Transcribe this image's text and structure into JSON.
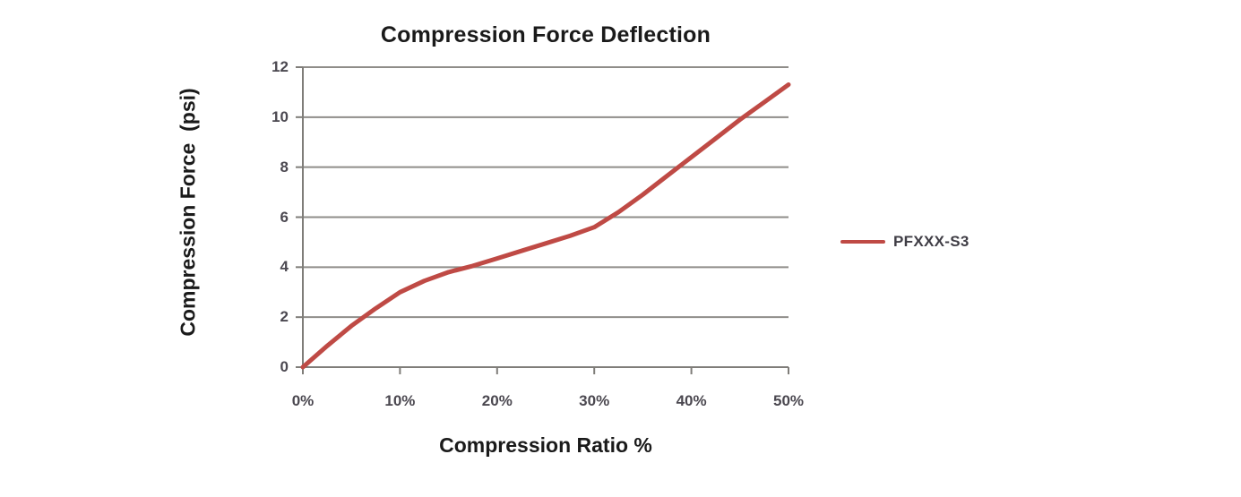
{
  "page": {
    "background": "#ffffff"
  },
  "chart_data": {
    "type": "line",
    "title": "Compression Force Deflection",
    "xlabel": "Compression Ratio %",
    "ylabel": "Compression Force  (psi)",
    "xlim": [
      0,
      50
    ],
    "ylim": [
      0,
      12
    ],
    "x_ticks": [
      0,
      10,
      20,
      30,
      40,
      50
    ],
    "x_tick_labels": [
      "0%",
      "10%",
      "20%",
      "30%",
      "40%",
      "50%"
    ],
    "y_ticks": [
      0,
      2,
      4,
      6,
      8,
      10,
      12
    ],
    "y_tick_labels": [
      "0",
      "2",
      "4",
      "6",
      "8",
      "10",
      "12"
    ],
    "grid": "horizontal-only",
    "legend": {
      "position": "right",
      "entries": [
        "PFXXX-S3"
      ]
    },
    "series": [
      {
        "name": "PFXXX-S3",
        "color": "#bf4a45",
        "x": [
          0,
          2.5,
          5,
          7.5,
          10,
          12.5,
          15,
          17.5,
          20,
          22.5,
          25,
          27.5,
          30,
          32.5,
          35,
          37.5,
          40,
          42.5,
          45,
          47.5,
          50
        ],
        "y": [
          0,
          0.85,
          1.65,
          2.35,
          3.0,
          3.45,
          3.8,
          4.05,
          4.35,
          4.65,
          4.95,
          5.25,
          5.6,
          6.2,
          6.9,
          7.65,
          8.4,
          9.15,
          9.9,
          10.6,
          11.3
        ]
      }
    ],
    "colors": {
      "series_line": "#bf4a45",
      "gridline": "#8f8d89",
      "axis_line": "#7f7d79",
      "tick_label": "#4b4850",
      "title_text": "#1a1a1a",
      "legend_text": "#3f3d45"
    }
  }
}
